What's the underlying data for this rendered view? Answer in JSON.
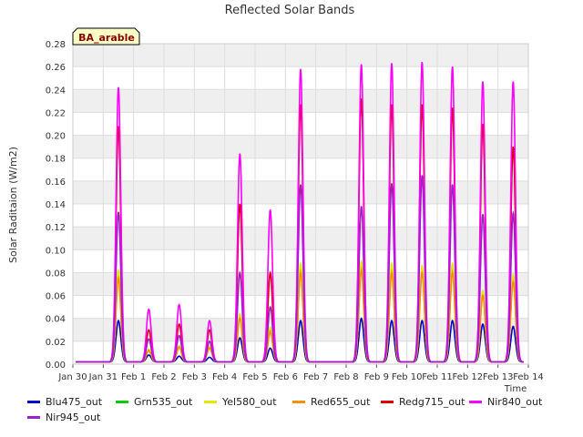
{
  "chart_data": {
    "type": "line",
    "title": "Reflected Solar Bands",
    "xlabel": "Time",
    "ylabel": "Solar Raditaion (W/m2)",
    "badge": "BA_arable",
    "ylim": [
      0,
      0.28
    ],
    "yticks": [
      "0.00",
      "0.02",
      "0.04",
      "0.06",
      "0.08",
      "0.10",
      "0.12",
      "0.14",
      "0.16",
      "0.18",
      "0.20",
      "0.22",
      "0.24",
      "0.26",
      "0.28"
    ],
    "xlim": [
      0,
      15
    ],
    "xticks": [
      "Jan 30",
      "Jan 31",
      "Feb 1",
      "Feb 2",
      "Feb 3",
      "Feb 4",
      "Feb 5",
      "Feb 6",
      "Feb 7",
      "Feb 8",
      "Feb 9",
      "Feb 10",
      "Feb 11",
      "Feb 12",
      "Feb 13",
      "Feb 14"
    ],
    "grid": true,
    "legend_position": "bottom",
    "series": [
      {
        "name": "Blu475_out",
        "color": "#0000cc",
        "peaks": [
          0.038,
          0.008,
          0.007,
          0.006,
          0.023,
          0.014,
          0.038,
          0,
          0.04,
          0.038,
          0.038,
          0.038,
          0.035,
          0.033
        ]
      },
      {
        "name": "Grn535_out",
        "color": "#00cc00",
        "peaks": [
          0.08,
          0.012,
          0.015,
          0.015,
          0.042,
          0.03,
          0.082,
          0,
          0.085,
          0.082,
          0.082,
          0.082,
          0.062,
          0.075
        ]
      },
      {
        "name": "Yel580_out",
        "color": "#e6e600",
        "peaks": [
          0.082,
          0.013,
          0.016,
          0.016,
          0.044,
          0.032,
          0.088,
          0,
          0.09,
          0.088,
          0.086,
          0.088,
          0.064,
          0.078
        ]
      },
      {
        "name": "Red655_out",
        "color": "#ff8c00",
        "peaks": [
          0.075,
          0.012,
          0.015,
          0.014,
          0.04,
          0.028,
          0.08,
          0,
          0.082,
          0.08,
          0.08,
          0.08,
          0.06,
          0.072
        ]
      },
      {
        "name": "Redg715_out",
        "color": "#dd0000",
        "peaks": [
          0.208,
          0.03,
          0.035,
          0.03,
          0.14,
          0.08,
          0.227,
          0,
          0.232,
          0.227,
          0.227,
          0.224,
          0.21,
          0.19
        ]
      },
      {
        "name": "Nir840_out",
        "color": "#ff00ff",
        "peaks": [
          0.242,
          0.048,
          0.052,
          0.038,
          0.184,
          0.135,
          0.258,
          0,
          0.262,
          0.263,
          0.264,
          0.26,
          0.247,
          0.247
        ]
      },
      {
        "name": "Nir945_out",
        "color": "#9922cc",
        "peaks": [
          0.133,
          0.022,
          0.025,
          0.02,
          0.08,
          0.05,
          0.157,
          0,
          0.138,
          0.158,
          0.165,
          0.157,
          0.131,
          0.132
        ]
      }
    ]
  }
}
